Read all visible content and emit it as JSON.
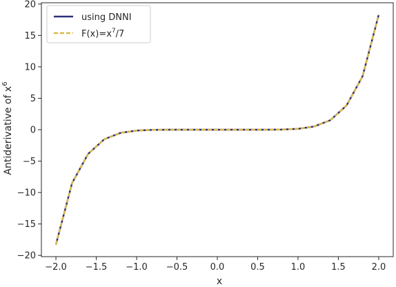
{
  "chart_data": {
    "type": "line",
    "title": "",
    "xlabel": "x",
    "ylabel": "Antiderivative of x",
    "ylabel_superscript": "6",
    "xlim": [
      -2.18,
      2.18
    ],
    "ylim": [
      -20.2,
      20.2
    ],
    "xticks": [
      -2.0,
      -1.5,
      -1.0,
      -0.5,
      0.0,
      0.5,
      1.0,
      1.5,
      2.0
    ],
    "xtick_labels": [
      "−2.0",
      "−1.5",
      "−1.0",
      "−0.5",
      "0.0",
      "0.5",
      "1.0",
      "1.5",
      "2.0"
    ],
    "yticks": [
      -20,
      -15,
      -10,
      -5,
      0,
      5,
      10,
      15,
      20
    ],
    "ytick_labels": [
      "−20",
      "−15",
      "−10",
      "−5",
      "0",
      "5",
      "10",
      "15",
      "20"
    ],
    "grid": false,
    "legend_position": "top-left",
    "x": [
      -2.0,
      -1.8,
      -1.6,
      -1.4,
      -1.2,
      -1.0,
      -0.8,
      -0.6,
      -0.4,
      -0.2,
      0.0,
      0.2,
      0.4,
      0.6,
      0.8,
      1.0,
      1.2,
      1.4,
      1.6,
      1.8,
      2.0
    ],
    "series": [
      {
        "name": "using DNNI",
        "color": "#2e2e7a",
        "style": "solid",
        "values": [
          -18.29,
          -8.5,
          -3.83,
          -1.51,
          -0.51,
          -0.14,
          -0.03,
          0.0,
          0.0,
          0.0,
          0.0,
          0.0,
          0.0,
          0.0,
          0.03,
          0.14,
          0.51,
          1.51,
          3.83,
          8.5,
          18.29
        ]
      },
      {
        "name": "F(x)=x",
        "name_superscript": "7",
        "name_suffix": "/7",
        "color": "#d9b84a",
        "style": "dashed",
        "values": [
          -18.29,
          -8.5,
          -3.83,
          -1.51,
          -0.51,
          -0.14,
          -0.03,
          0.0,
          0.0,
          0.0,
          0.0,
          0.0,
          0.0,
          0.0,
          0.03,
          0.14,
          0.51,
          1.51,
          3.83,
          8.5,
          18.29
        ]
      }
    ]
  }
}
